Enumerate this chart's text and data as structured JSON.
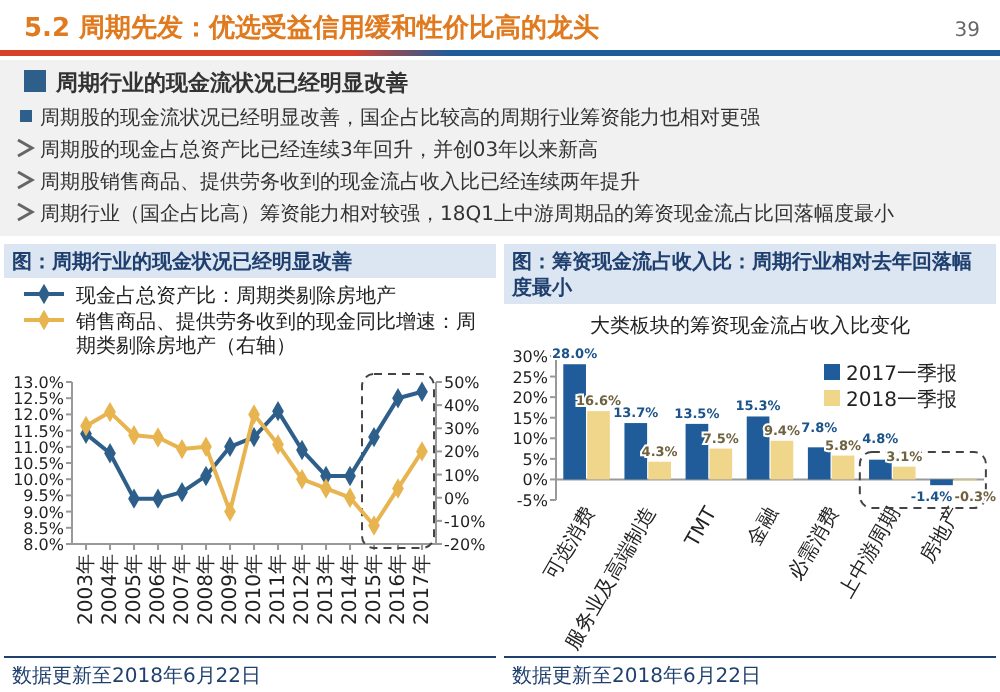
{
  "chart_data": [
    {
      "type": "other",
      "title": "5.2 周期先发：优选受益信用缓和性价比高的龙头",
      "subtitle": "周期行业的现金流状况已经明显改善",
      "annotations": [
        "39",
        "周期股的现金流状况已经明显改善，国企占比较高的周期行业筹资能力也相对更强",
        "周期股的现金占总资产比已经连续3年回升，并创03年以来新高",
        "周期股销售商品、提供劳务收到的现金流占收入比已经连续两年提升",
        "周期行业（国企占比高）筹资能力相对较强，18Q1上中游周期品的筹资现金流占比回落幅度最小"
      ]
    },
    {
      "type": "line",
      "title": "图：周期行业的现金状况已经明显改善",
      "categories": [
        "2003年",
        "2004年",
        "2005年",
        "2006年",
        "2007年",
        "2008年",
        "2009年",
        "2010年",
        "2011年",
        "2012年",
        "2013年",
        "2014年",
        "2015年",
        "2016年",
        "2017年"
      ],
      "series": [
        {
          "name": "现金占总资产比：周期类剔除房地产",
          "color": "#2e5f8a",
          "values": [
            11.4,
            10.8,
            9.4,
            9.4,
            9.6,
            10.1,
            11.0,
            11.3,
            12.1,
            10.9,
            10.1,
            10.1,
            11.3,
            12.5,
            12.7
          ]
        },
        {
          "name": "销售商品、提供劳务收到的现金同比增速：周期类剔除房地产（右轴）",
          "color": "#e8b450",
          "axis": "y2",
          "values": [
            31,
            37,
            27,
            26,
            21,
            22,
            -6,
            36,
            23,
            8,
            4,
            0,
            -12,
            4,
            20
          ]
        }
      ],
      "ylim": [
        8,
        13
      ],
      "yticks": [
        {
          "value": 8,
          "label": "8.0%"
        },
        {
          "value": 8.5,
          "label": "8.5%"
        },
        {
          "value": 9,
          "label": "9.0%"
        },
        {
          "value": 9.5,
          "label": "9.5%"
        },
        {
          "value": 10,
          "label": "10.0%"
        },
        {
          "value": 10.5,
          "label": "10.5%"
        },
        {
          "value": 11,
          "label": "11.0%"
        },
        {
          "value": 11.5,
          "label": "11.5%"
        },
        {
          "value": 12,
          "label": "12.0%"
        },
        {
          "value": 12.5,
          "label": "12.5%"
        },
        {
          "value": 13,
          "label": "13.0%"
        }
      ],
      "y2lim": [
        -20,
        50
      ],
      "y2ticks": [
        {
          "value": -20,
          "label": "-20%"
        },
        {
          "value": -10,
          "label": "-10%"
        },
        {
          "value": 0,
          "label": "0%"
        },
        {
          "value": 10,
          "label": "10%"
        },
        {
          "value": 20,
          "label": "20%"
        },
        {
          "value": 30,
          "label": "30%"
        },
        {
          "value": 40,
          "label": "40%"
        },
        {
          "value": 50,
          "label": "50%"
        }
      ],
      "marker": "diamond",
      "legend": "top",
      "annotations": [
        "数据更新至2018年6月22日"
      ]
    },
    {
      "type": "bar",
      "title": "图：筹资现金流占收入比：周期行业相对去年回落幅度最小",
      "subtitle": "大类板块的筹资现金流占收入比变化",
      "categories": [
        "可选消费",
        "服务业及高端制造",
        "TMT",
        "金融",
        "必需消费",
        "上中游周期",
        "房地产"
      ],
      "series": [
        {
          "name": "2017一季报",
          "color": "#1f5c99",
          "values": [
            28.0,
            13.7,
            13.5,
            15.3,
            7.8,
            4.8,
            -1.4
          ],
          "value_labels": [
            "28.0%",
            "13.7%",
            "13.5%",
            "15.3%",
            "7.8%",
            "4.8%",
            "-1.4%"
          ]
        },
        {
          "name": "2018一季报",
          "color": "#f0d68a",
          "values": [
            16.6,
            4.3,
            7.5,
            9.4,
            5.8,
            3.1,
            -0.3
          ],
          "value_labels": [
            "16.6%",
            "4.3%",
            "7.5%",
            "9.4%",
            "5.8%",
            "3.1%",
            "-0.3%"
          ]
        }
      ],
      "ylim": [
        -5,
        30
      ],
      "yticks": [
        {
          "value": -5,
          "label": "-5%"
        },
        {
          "value": 0,
          "label": "0%"
        },
        {
          "value": 5,
          "label": "5%"
        },
        {
          "value": 10,
          "label": "10%"
        },
        {
          "value": 15,
          "label": "15%"
        },
        {
          "value": 20,
          "label": "20%"
        },
        {
          "value": 25,
          "label": "25%"
        },
        {
          "value": 30,
          "label": "30%"
        }
      ],
      "legend": "top right",
      "annotations": [
        "数据更新至2018年6月22日"
      ]
    }
  ]
}
